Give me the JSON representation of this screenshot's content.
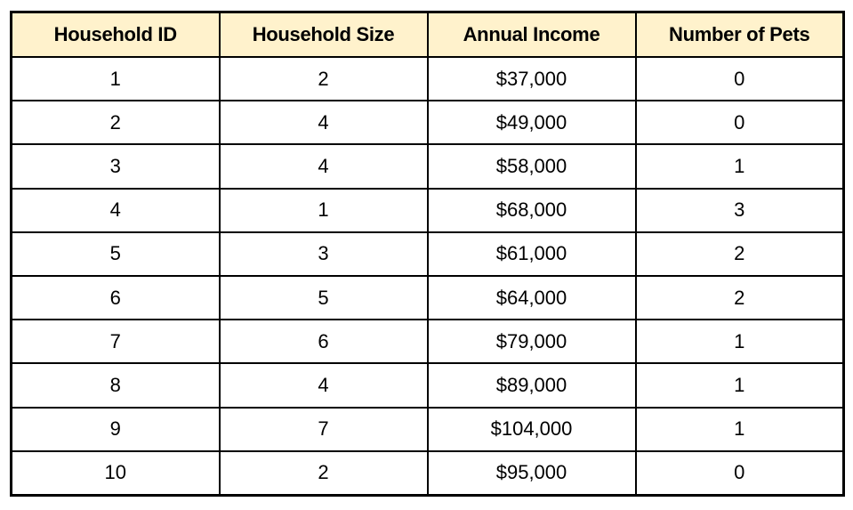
{
  "chart_data": {
    "type": "table",
    "title": "",
    "columns": [
      "Household ID",
      "Household Size",
      "Annual Income",
      "Number of Pets"
    ],
    "rows": [
      [
        "1",
        "2",
        "$37,000",
        "0"
      ],
      [
        "2",
        "4",
        "$49,000",
        "0"
      ],
      [
        "3",
        "4",
        "$58,000",
        "1"
      ],
      [
        "4",
        "1",
        "$68,000",
        "3"
      ],
      [
        "5",
        "3",
        "$61,000",
        "2"
      ],
      [
        "6",
        "5",
        "$64,000",
        "2"
      ],
      [
        "7",
        "6",
        "$79,000",
        "1"
      ],
      [
        "8",
        "4",
        "$89,000",
        "1"
      ],
      [
        "9",
        "7",
        "$104,000",
        "1"
      ],
      [
        "10",
        "2",
        "$95,000",
        "0"
      ]
    ],
    "layout": {
      "header_background": "#FFF2CC",
      "border_color": "#000000",
      "text_color": "#000000",
      "grid": true
    }
  }
}
